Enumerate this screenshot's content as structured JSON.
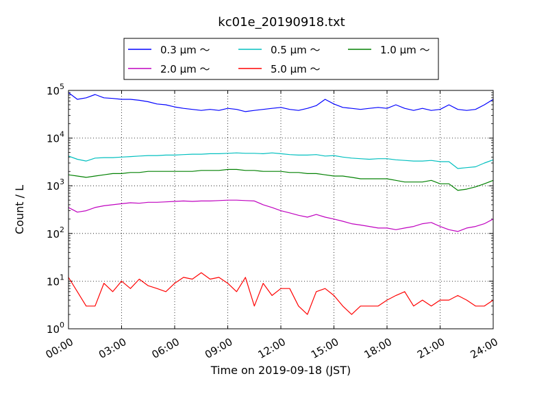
{
  "chart_data": {
    "type": "line",
    "title": "kc01e_20190918.txt",
    "xlabel": "Time on 2019-09-18 (JST)",
    "ylabel": "Count / L",
    "yscale": "log",
    "ylim": [
      1,
      100000
    ],
    "xlim": [
      "00:00",
      "24:00"
    ],
    "grid": true,
    "legend_position": "top",
    "x_tick_labels": [
      "00:00",
      "03:00",
      "06:00",
      "09:00",
      "12:00",
      "15:00",
      "18:00",
      "21:00",
      "24:00"
    ],
    "y_tick_labels": [
      {
        "base": "10",
        "exp": "0"
      },
      {
        "base": "10",
        "exp": "1"
      },
      {
        "base": "10",
        "exp": "2"
      },
      {
        "base": "10",
        "exp": "3"
      },
      {
        "base": "10",
        "exp": "4"
      },
      {
        "base": "10",
        "exp": "5"
      }
    ],
    "x_hours": [
      0,
      0.5,
      1,
      1.5,
      2,
      2.5,
      3,
      3.5,
      4,
      4.5,
      5,
      5.5,
      6,
      6.5,
      7,
      7.5,
      8,
      8.5,
      9,
      9.5,
      10,
      10.5,
      11,
      11.5,
      12,
      12.5,
      13,
      13.5,
      14,
      14.5,
      15,
      15.5,
      16,
      16.5,
      17,
      17.5,
      18,
      18.5,
      19,
      19.5,
      20,
      20.5,
      21,
      21.5,
      22,
      22.5,
      23,
      23.5,
      24
    ],
    "series": [
      {
        "name": "0.3 μm ～",
        "color": "#0000ff",
        "values": [
          90000,
          65000,
          70000,
          82000,
          70000,
          68000,
          65000,
          65000,
          62000,
          58000,
          52000,
          50000,
          45000,
          42000,
          40000,
          38000,
          40000,
          38000,
          42000,
          40000,
          36000,
          38000,
          40000,
          42000,
          44000,
          40000,
          38000,
          42000,
          48000,
          65000,
          52000,
          44000,
          42000,
          40000,
          42000,
          44000,
          42000,
          50000,
          42000,
          38000,
          42000,
          38000,
          40000,
          50000,
          40000,
          38000,
          40000,
          50000,
          65000
        ]
      },
      {
        "name": "0.5 μm ～",
        "color": "#00bfbf",
        "values": [
          4200,
          3600,
          3300,
          3800,
          3900,
          3900,
          4000,
          4100,
          4200,
          4300,
          4300,
          4400,
          4400,
          4500,
          4600,
          4600,
          4700,
          4700,
          4800,
          4900,
          4800,
          4800,
          4700,
          4900,
          4700,
          4500,
          4400,
          4400,
          4500,
          4200,
          4300,
          4000,
          3800,
          3700,
          3600,
          3700,
          3700,
          3500,
          3400,
          3300,
          3300,
          3400,
          3200,
          3200,
          2300,
          2400,
          2500,
          3000,
          3500
        ]
      },
      {
        "name": "1.0 μm ～",
        "color": "#008000",
        "values": [
          1700,
          1600,
          1500,
          1600,
          1700,
          1800,
          1800,
          1900,
          1900,
          2000,
          2000,
          2000,
          2000,
          2000,
          2000,
          2100,
          2100,
          2100,
          2200,
          2200,
          2100,
          2100,
          2000,
          2000,
          2000,
          1900,
          1900,
          1800,
          1800,
          1700,
          1600,
          1600,
          1500,
          1400,
          1400,
          1400,
          1400,
          1300,
          1200,
          1200,
          1200,
          1300,
          1100,
          1100,
          800,
          850,
          950,
          1100,
          1300
        ]
      },
      {
        "name": "2.0 μm ～",
        "color": "#bf00bf",
        "values": [
          350,
          280,
          300,
          350,
          380,
          400,
          420,
          440,
          430,
          450,
          450,
          460,
          470,
          480,
          470,
          480,
          480,
          490,
          500,
          500,
          490,
          480,
          400,
          350,
          300,
          270,
          240,
          220,
          250,
          220,
          200,
          180,
          160,
          150,
          140,
          130,
          130,
          120,
          130,
          140,
          160,
          170,
          140,
          120,
          110,
          130,
          140,
          160,
          200
        ]
      },
      {
        "name": "5.0 μm ～",
        "color": "#ff0000",
        "values": [
          12,
          6,
          3,
          3,
          9,
          6,
          10,
          7,
          11,
          8,
          7,
          6,
          9,
          12,
          11,
          15,
          11,
          12,
          9,
          6,
          12,
          3,
          9,
          5,
          7,
          7,
          3,
          2,
          6,
          7,
          5,
          3,
          2,
          3,
          3,
          3,
          4,
          5,
          6,
          3,
          4,
          3,
          4,
          4,
          5,
          4,
          3,
          3,
          4
        ]
      }
    ]
  }
}
